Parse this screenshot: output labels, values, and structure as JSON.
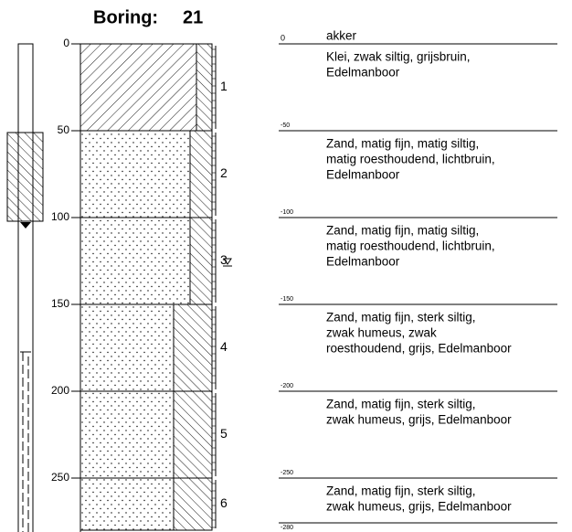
{
  "header": {
    "title": "Boring:",
    "number": 21
  },
  "depth_scale": {
    "ticks": [
      0,
      50,
      100,
      150,
      200,
      250
    ]
  },
  "surface": "akker",
  "layers": [
    {
      "number": 1,
      "depth_label": 0,
      "description": [
        "Klei, zwak siltig, grijsbruin,",
        "Edelmanboor"
      ]
    },
    {
      "number": 2,
      "depth_label": -50,
      "description": [
        "Zand, matig fijn, matig siltig,",
        "matig roesthoudend, lichtbruin,",
        "Edelmanboor"
      ]
    },
    {
      "number": 3,
      "depth_label": -100,
      "description": [
        "Zand, matig fijn, matig siltig,",
        "matig roesthoudend, lichtbruin,",
        "Edelmanboor"
      ]
    },
    {
      "number": 4,
      "depth_label": -150,
      "description": [
        "Zand, matig fijn, sterk siltig,",
        "zwak humeus, zwak",
        "roesthoudend, grijs, Edelmanboor"
      ]
    },
    {
      "number": 5,
      "depth_label": -200,
      "description": [
        "Zand, matig fijn, sterk siltig,",
        "zwak humeus, grijs, Edelmanboor"
      ]
    },
    {
      "number": 6,
      "depth_label": -250,
      "description": [
        "Zand, matig fijn, sterk siltig,",
        "zwak humeus, grijs, Edelmanboor"
      ]
    }
  ],
  "bottom_label": -280
}
